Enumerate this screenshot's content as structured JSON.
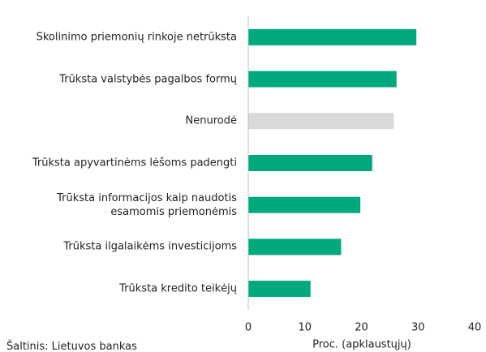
{
  "chart_data": {
    "type": "barh",
    "categories": [
      "Skolinimo priemonių rinkoje netrūksta",
      "Trūksta valstybės pagalbos formų",
      "Nenurodė",
      "Trūksta apyvartinėms lėšoms padengti",
      "Trūksta informacijos kaip naudotis esamomis priemonėmis",
      "Trūksta ilgalaikėms investicijoms",
      "Trūksta kredito teikėjų"
    ],
    "values": [
      29.7,
      26.2,
      25.7,
      21.9,
      19.8,
      16.4,
      11
    ],
    "colors": [
      "#00a87e",
      "#00a87e",
      "#d9d9d9",
      "#00a87e",
      "#00a87e",
      "#00a87e",
      "#00a87e"
    ],
    "xlim": [
      0,
      40
    ],
    "xticks": [
      0,
      10,
      20,
      30,
      40
    ],
    "xlabel": "Proc. (apklaustųjų)",
    "source": "Šaltinis: Lietuvos bankas",
    "grid": false
  }
}
